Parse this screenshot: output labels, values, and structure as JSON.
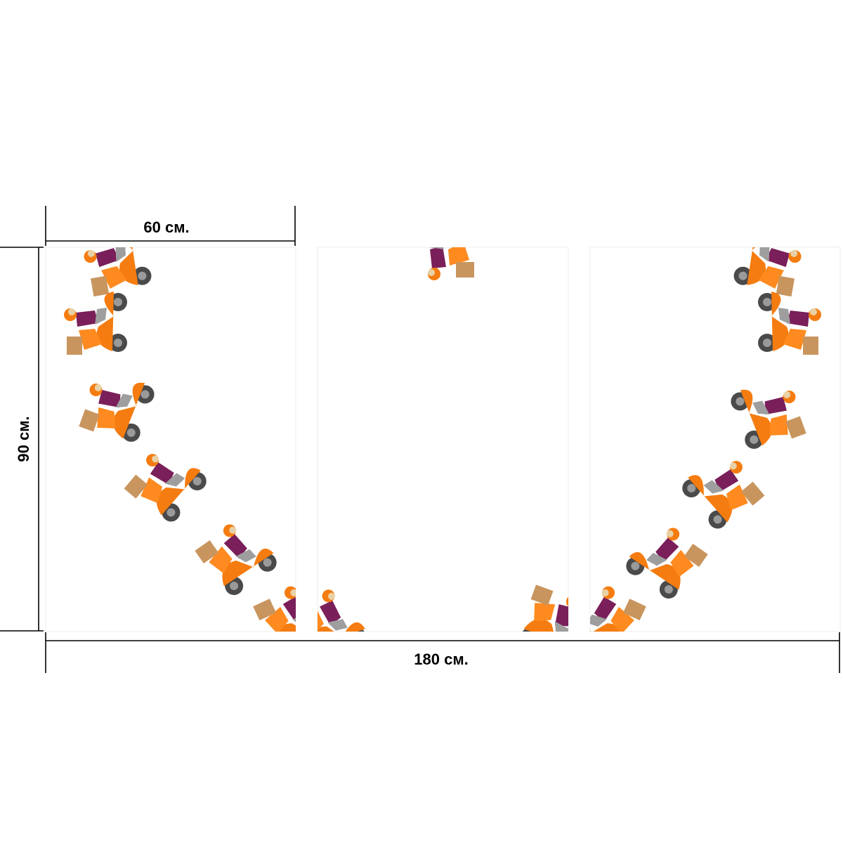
{
  "dimensions": {
    "width_panel": "60 см.",
    "height": "90 см.",
    "width_total": "180 см."
  }
}
